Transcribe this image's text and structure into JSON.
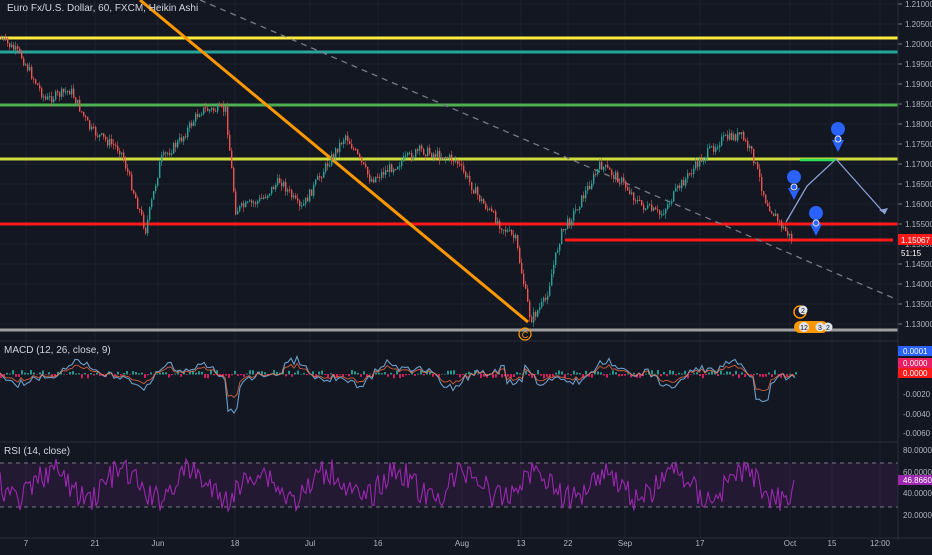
{
  "symbol_title": "Euro Fx/U.S. Dollar, 60, FXCM, Heikin Ashi",
  "price_axis": {
    "labels": [
      "1.21000",
      "1.20500",
      "1.20000",
      "1.19500",
      "1.19000",
      "1.18500",
      "1.18000",
      "1.17500",
      "1.17000",
      "1.16500",
      "1.16000",
      "1.15500",
      "1.15000",
      "1.14500",
      "1.14000",
      "1.13500",
      "1.13000"
    ],
    "current_price": "1.15067",
    "countdown": "51:15"
  },
  "time_axis": {
    "labels": [
      "7",
      "21",
      "Jun",
      "18",
      "Jul",
      "16",
      "Aug",
      "13",
      "22",
      "Sep",
      "17",
      "Oct",
      "15",
      "12:00"
    ]
  },
  "wave_label": "C",
  "event_badges": {
    "top": "2",
    "bottom_a": "12",
    "bottom_b": "3",
    "bottom_c": "2"
  },
  "macd": {
    "label": "MACD (12, 26, close, 9)",
    "axis_labels": [
      "0.0001",
      "0.0000",
      "0.0000",
      "-0.0020",
      "-0.0040",
      "-0.0060"
    ]
  },
  "rsi": {
    "label": "RSI (14, close)",
    "axis_labels": [
      "80.0000",
      "60.0000",
      "46.8660",
      "40.0000",
      "20.0000"
    ]
  },
  "colors": {
    "background": "#131722",
    "bull": "#26a69a",
    "bear": "#ef5350",
    "yellow_line": "#ffeb3b",
    "teal_line": "#26a69a",
    "green_line": "#4caf50",
    "olive_line": "#cddc39",
    "red_line": "#ff1a1a",
    "orange_trend": "#ff9800",
    "marker_blue": "#2962ff",
    "rsi_purple": "#9c27b0",
    "macd_pink": "#e91e63"
  },
  "icons": [
    "location-pin-icon",
    "wave-c-icon",
    "event-badge-icon"
  ]
}
